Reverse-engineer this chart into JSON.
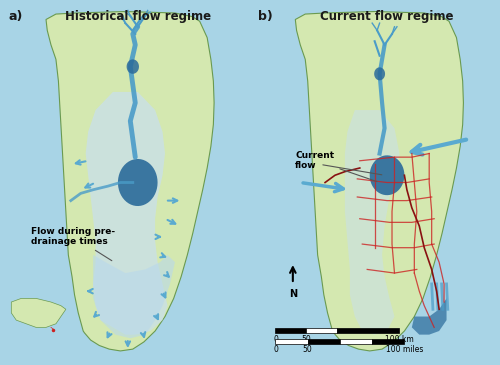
{
  "bg_color": "#a8d4e6",
  "land_color": "#d4e8b0",
  "land_edge_color": "#6a9a50",
  "water_color": "#4a9cc8",
  "water_dark_color": "#2a6a9a",
  "flow_area_color": "#b8d8e8",
  "arrow_color": "#5aaad0",
  "canal_color": "#cc2222",
  "canal_dark_color": "#881111",
  "title_left": "Historical flow regime",
  "title_right": "Current flow regime",
  "label_a": "a)",
  "label_b": "b)",
  "annotation_left": "Flow during pre-\ndrainage times",
  "annotation_right": "Current\nflow"
}
